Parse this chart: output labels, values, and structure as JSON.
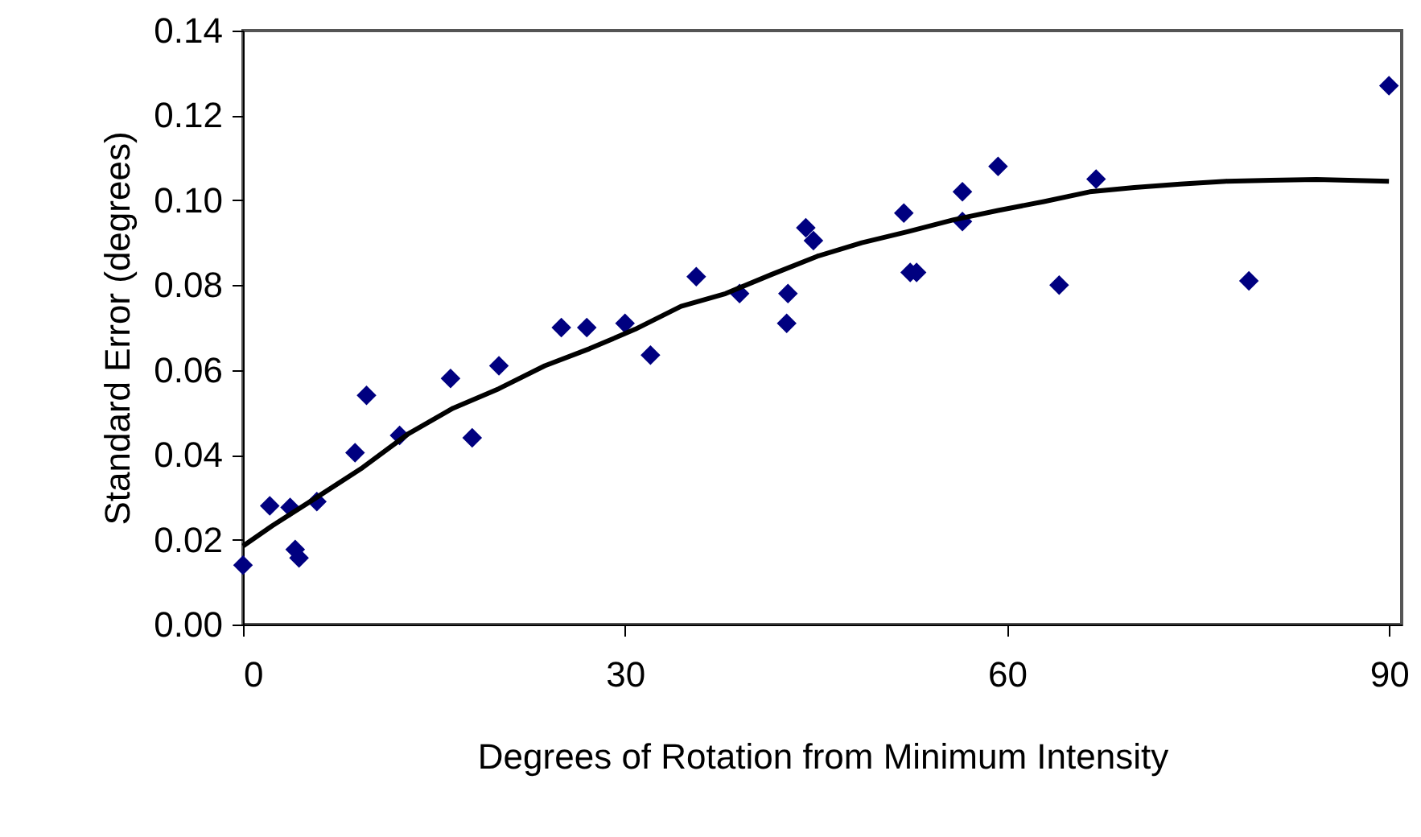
{
  "chart_data": {
    "type": "scatter",
    "xlabel": "Degrees of Rotation from Minimum Intensity",
    "ylabel": "Standard Error (degrees)",
    "xlim": [
      0,
      91
    ],
    "xticks": [
      0,
      30,
      60,
      90
    ],
    "ylim": [
      0,
      0.14
    ],
    "yticks": [
      {
        "value": 0,
        "label": "0.00"
      },
      {
        "value": 0.02,
        "label": "0.02"
      },
      {
        "value": 0.04,
        "label": "0.04"
      },
      {
        "value": 0.06,
        "label": "0.06"
      },
      {
        "value": 0.08,
        "label": "0.08"
      },
      {
        "value": 0.1,
        "label": "0.10"
      },
      {
        "value": 0.12,
        "label": "0.12"
      },
      {
        "value": 0.14,
        "label": "0.14"
      }
    ],
    "grid": false,
    "series": [
      {
        "color": "#000080",
        "marker": "diamond",
        "x": [
          0,
          2.1,
          3.7,
          4.1,
          4.4,
          5.8,
          8.8,
          9.7,
          12.3,
          16.3,
          18.0,
          20.1,
          25.0,
          27.0,
          30.0,
          32.0,
          35.6,
          39.0,
          42.7,
          42.8,
          44.2,
          44.8,
          51.9,
          52.4,
          52.9,
          56.5,
          56.5,
          59.3,
          64.1,
          67.0,
          79.0,
          90.0
        ],
        "values": [
          0.014,
          0.028,
          0.0276,
          0.0177,
          0.0157,
          0.029,
          0.0405,
          0.054,
          0.0446,
          0.058,
          0.044,
          0.061,
          0.07,
          0.07,
          0.071,
          0.0635,
          0.082,
          0.078,
          0.071,
          0.078,
          0.0935,
          0.0905,
          0.097,
          0.083,
          0.083,
          0.102,
          0.095,
          0.108,
          0.08,
          0.105,
          0.081,
          0.127
        ]
      },
      {
        "type": "line",
        "color": "#000000",
        "line_style": "solid",
        "marker": "none",
        "x": [
          0,
          2.3,
          5.8,
          9.4,
          13,
          16.5,
          20.1,
          23.7,
          27.2,
          30.8,
          34.4,
          37.9,
          41.5,
          45.1,
          48.6,
          52.2,
          55.8,
          59.3,
          62.9,
          66.5,
          70,
          73.6,
          77.2,
          80.7,
          84.3,
          90
        ],
        "values": [
          0.0185,
          0.0233,
          0.03,
          0.037,
          0.045,
          0.051,
          0.0556,
          0.061,
          0.065,
          0.0696,
          0.075,
          0.078,
          0.0825,
          0.0868,
          0.09,
          0.0926,
          0.0954,
          0.0976,
          0.0997,
          0.102,
          0.103,
          0.1038,
          0.1045,
          0.1047,
          0.1049,
          0.1045
        ]
      }
    ]
  }
}
